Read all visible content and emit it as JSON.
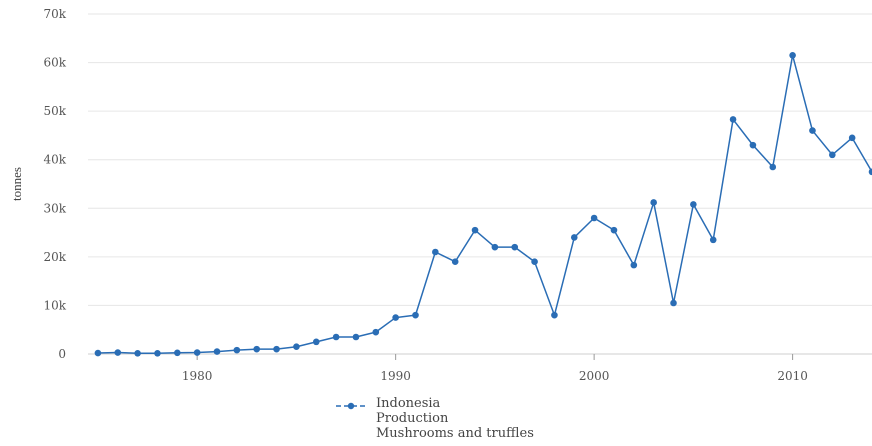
{
  "chart_data": {
    "type": "line",
    "title": "",
    "xlabel": "",
    "ylabel": "tonnes",
    "xlim": [
      1974.5,
      2014
    ],
    "ylim": [
      0,
      70000
    ],
    "x_ticks": [
      1980,
      1990,
      2000,
      2010
    ],
    "x_tick_labels": [
      "1980",
      "1990",
      "2000",
      "2010"
    ],
    "y_ticks": [
      0,
      10000,
      20000,
      30000,
      40000,
      50000,
      60000,
      70000
    ],
    "y_tick_labels": [
      "0",
      "10k",
      "20k",
      "30k",
      "40k",
      "50k",
      "60k",
      "70k"
    ],
    "grid": true,
    "legend_position": "bottom-center",
    "legend_lines": [
      "Indonesia",
      "Production",
      "Mushrooms and truffles"
    ],
    "color": "#2a6db5",
    "series": [
      {
        "x": [
          1975,
          1976,
          1977,
          1978,
          1979,
          1980,
          1981,
          1982,
          1983,
          1984,
          1985,
          1986,
          1987,
          1988,
          1989,
          1990,
          1991,
          1992,
          1993,
          1994,
          1995,
          1996,
          1997,
          1998,
          1999,
          2000,
          2001,
          2002,
          2003,
          2004,
          2005,
          2006,
          2007,
          2008,
          2009,
          2010,
          2011,
          2012,
          2013,
          2014
        ],
        "values": [
          200,
          300,
          150,
          150,
          250,
          300,
          500,
          800,
          1000,
          1000,
          1500,
          2500,
          3500,
          3500,
          4500,
          7500,
          8000,
          21000,
          19000,
          25500,
          22000,
          22000,
          19000,
          8000,
          24000,
          28000,
          25500,
          18300,
          31200,
          10500,
          30800,
          23500,
          48300,
          43000,
          38500,
          61500,
          46000,
          41000,
          44500,
          37500
        ]
      }
    ]
  }
}
